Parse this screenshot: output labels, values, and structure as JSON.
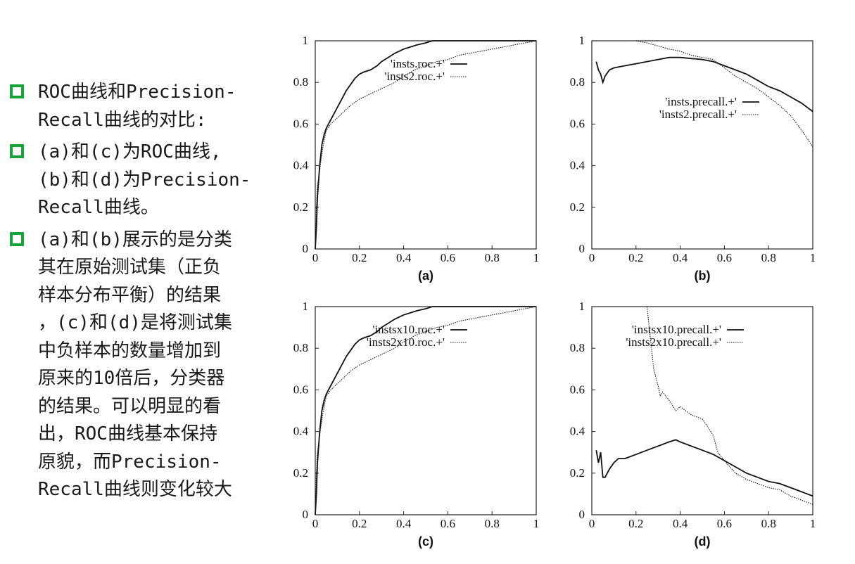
{
  "bullets": [
    {
      "icon": "green-square-bullet-icon",
      "text": "ROC曲线和Precision-\nRecall曲线的对比:"
    },
    {
      "icon": "green-square-bullet-icon",
      "text": "(a)和(c)为ROC曲线,\n(b)和(d)为Precision-\nRecall曲线。"
    },
    {
      "icon": "green-square-bullet-icon",
      "text": "(a)和(b)展示的是分类\n其在原始测试集（正负\n样本分布平衡）的结果\n，(c)和(d)是将测试集\n中负样本的数量增加到\n原来的10倍后，分类器\n的结果。可以明显的看\n出，ROC曲线基本保持\n原貌，而Precision-\nRecall曲线则变化较大"
    }
  ],
  "chart_data": [
    {
      "panel": "(a)",
      "type": "line",
      "xlim": [
        0,
        1
      ],
      "ylim": [
        0,
        1
      ],
      "xticks": [
        "0",
        "0.2",
        "0.4",
        "0.6",
        "0.8",
        "1"
      ],
      "yticks": [
        "0",
        "0.2",
        "0.4",
        "0.6",
        "0.8",
        "1"
      ],
      "legend_position": "top-right",
      "series": [
        {
          "name": "'insts.roc.+'",
          "style": "solid",
          "x": [
            0,
            0.005,
            0.01,
            0.02,
            0.03,
            0.04,
            0.05,
            0.06,
            0.08,
            0.1,
            0.12,
            0.14,
            0.16,
            0.18,
            0.2,
            0.22,
            0.25,
            0.28,
            0.3,
            0.33,
            0.36,
            0.4,
            0.43,
            0.46,
            0.5,
            0.53,
            0.6,
            0.7,
            0.8,
            0.9,
            1.0
          ],
          "y": [
            0,
            0.1,
            0.25,
            0.4,
            0.5,
            0.55,
            0.58,
            0.6,
            0.64,
            0.68,
            0.72,
            0.76,
            0.79,
            0.82,
            0.84,
            0.85,
            0.86,
            0.88,
            0.9,
            0.92,
            0.94,
            0.96,
            0.97,
            0.98,
            0.99,
            1.0,
            1.0,
            1.0,
            1.0,
            1.0,
            1.0
          ]
        },
        {
          "name": "'insts2.roc.+'",
          "style": "dashed",
          "x": [
            0,
            0.005,
            0.01,
            0.02,
            0.03,
            0.04,
            0.05,
            0.07,
            0.1,
            0.13,
            0.16,
            0.2,
            0.24,
            0.28,
            0.32,
            0.36,
            0.4,
            0.45,
            0.5,
            0.55,
            0.6,
            0.65,
            0.7,
            0.75,
            0.8,
            0.85,
            0.9,
            0.95,
            1.0
          ],
          "y": [
            0,
            0.2,
            0.3,
            0.38,
            0.46,
            0.52,
            0.57,
            0.6,
            0.63,
            0.66,
            0.69,
            0.72,
            0.74,
            0.76,
            0.78,
            0.8,
            0.83,
            0.86,
            0.88,
            0.9,
            0.91,
            0.93,
            0.94,
            0.95,
            0.96,
            0.97,
            0.98,
            0.99,
            1.0
          ]
        }
      ]
    },
    {
      "panel": "(b)",
      "type": "line",
      "xlim": [
        0,
        1
      ],
      "ylim": [
        0,
        1
      ],
      "xticks": [
        "0",
        "0.2",
        "0.4",
        "0.6",
        "0.8",
        "1"
      ],
      "yticks": [
        "0",
        "0.2",
        "0.4",
        "0.6",
        "0.8",
        "1"
      ],
      "legend_position": "middle-right",
      "series": [
        {
          "name": "'insts.precall.+'",
          "style": "solid",
          "x": [
            0.02,
            0.03,
            0.04,
            0.05,
            0.06,
            0.08,
            0.1,
            0.15,
            0.2,
            0.25,
            0.3,
            0.35,
            0.4,
            0.45,
            0.5,
            0.55,
            0.6,
            0.65,
            0.7,
            0.75,
            0.8,
            0.85,
            0.9,
            0.95,
            1.0
          ],
          "y": [
            0.9,
            0.86,
            0.84,
            0.8,
            0.83,
            0.86,
            0.87,
            0.88,
            0.89,
            0.9,
            0.91,
            0.92,
            0.92,
            0.915,
            0.91,
            0.9,
            0.88,
            0.86,
            0.84,
            0.81,
            0.78,
            0.76,
            0.73,
            0.7,
            0.66
          ]
        },
        {
          "name": "'insts2.precall.+'",
          "style": "dashed",
          "x": [
            0.2,
            0.25,
            0.3,
            0.35,
            0.4,
            0.45,
            0.5,
            0.55,
            0.6,
            0.65,
            0.7,
            0.75,
            0.8,
            0.85,
            0.9,
            0.95,
            1.0
          ],
          "y": [
            1.0,
            0.99,
            0.975,
            0.96,
            0.95,
            0.93,
            0.92,
            0.91,
            0.87,
            0.83,
            0.8,
            0.77,
            0.73,
            0.69,
            0.64,
            0.57,
            0.49
          ]
        }
      ]
    },
    {
      "panel": "(c)",
      "type": "line",
      "xlim": [
        0,
        1
      ],
      "ylim": [
        0,
        1
      ],
      "xticks": [
        "0",
        "0.2",
        "0.4",
        "0.6",
        "0.8",
        "1"
      ],
      "yticks": [
        "0",
        "0.2",
        "0.4",
        "0.6",
        "0.8",
        "1"
      ],
      "legend_position": "top-right",
      "series": [
        {
          "name": "'instsx10.roc.+'",
          "style": "solid",
          "x": [
            0,
            0.005,
            0.01,
            0.02,
            0.03,
            0.04,
            0.05,
            0.06,
            0.08,
            0.1,
            0.12,
            0.14,
            0.16,
            0.18,
            0.2,
            0.22,
            0.25,
            0.28,
            0.3,
            0.33,
            0.36,
            0.4,
            0.43,
            0.46,
            0.5,
            0.53,
            0.6,
            0.7,
            0.8,
            0.9,
            1.0
          ],
          "y": [
            0,
            0.1,
            0.25,
            0.4,
            0.5,
            0.55,
            0.58,
            0.6,
            0.64,
            0.68,
            0.72,
            0.76,
            0.79,
            0.82,
            0.84,
            0.85,
            0.86,
            0.88,
            0.9,
            0.92,
            0.94,
            0.96,
            0.97,
            0.98,
            0.99,
            1.0,
            1.0,
            1.0,
            1.0,
            1.0,
            1.0
          ]
        },
        {
          "name": "'insts2x10.roc.+'",
          "style": "dashed",
          "x": [
            0,
            0.005,
            0.01,
            0.02,
            0.03,
            0.04,
            0.05,
            0.07,
            0.1,
            0.13,
            0.16,
            0.2,
            0.24,
            0.28,
            0.32,
            0.36,
            0.4,
            0.45,
            0.5,
            0.55,
            0.6,
            0.65,
            0.7,
            0.75,
            0.8,
            0.85,
            0.9,
            0.95,
            1.0
          ],
          "y": [
            0,
            0.2,
            0.3,
            0.38,
            0.46,
            0.52,
            0.57,
            0.6,
            0.63,
            0.66,
            0.69,
            0.72,
            0.74,
            0.76,
            0.78,
            0.8,
            0.83,
            0.86,
            0.88,
            0.9,
            0.91,
            0.93,
            0.94,
            0.95,
            0.96,
            0.97,
            0.98,
            0.99,
            1.0
          ]
        }
      ]
    },
    {
      "panel": "(d)",
      "type": "line",
      "xlim": [
        0,
        1
      ],
      "ylim": [
        0,
        1
      ],
      "xticks": [
        "0",
        "0.2",
        "0.4",
        "0.6",
        "0.8",
        "1"
      ],
      "yticks": [
        "0",
        "0.2",
        "0.4",
        "0.6",
        "0.8",
        "1"
      ],
      "legend_position": "top-right",
      "series": [
        {
          "name": "'instsx10.precall.+'",
          "style": "solid",
          "x": [
            0.02,
            0.03,
            0.04,
            0.05,
            0.06,
            0.08,
            0.1,
            0.12,
            0.15,
            0.2,
            0.25,
            0.3,
            0.35,
            0.38,
            0.4,
            0.45,
            0.5,
            0.55,
            0.6,
            0.65,
            0.7,
            0.75,
            0.8,
            0.85,
            0.9,
            0.95,
            1.0
          ],
          "y": [
            0.31,
            0.25,
            0.3,
            0.18,
            0.18,
            0.22,
            0.25,
            0.27,
            0.27,
            0.29,
            0.31,
            0.33,
            0.35,
            0.36,
            0.35,
            0.33,
            0.31,
            0.29,
            0.26,
            0.23,
            0.2,
            0.18,
            0.16,
            0.15,
            0.13,
            0.11,
            0.09
          ]
        },
        {
          "name": "'insts2x10.precall.+'",
          "style": "dashed",
          "x": [
            0.25,
            0.26,
            0.27,
            0.28,
            0.3,
            0.31,
            0.32,
            0.35,
            0.38,
            0.4,
            0.45,
            0.5,
            0.52,
            0.55,
            0.57,
            0.6,
            0.65,
            0.7,
            0.75,
            0.8,
            0.85,
            0.9,
            0.95,
            1.0
          ],
          "y": [
            1.0,
            0.9,
            0.8,
            0.7,
            0.62,
            0.57,
            0.59,
            0.55,
            0.5,
            0.52,
            0.48,
            0.46,
            0.43,
            0.38,
            0.3,
            0.26,
            0.2,
            0.17,
            0.15,
            0.13,
            0.12,
            0.09,
            0.07,
            0.05
          ]
        }
      ]
    }
  ]
}
